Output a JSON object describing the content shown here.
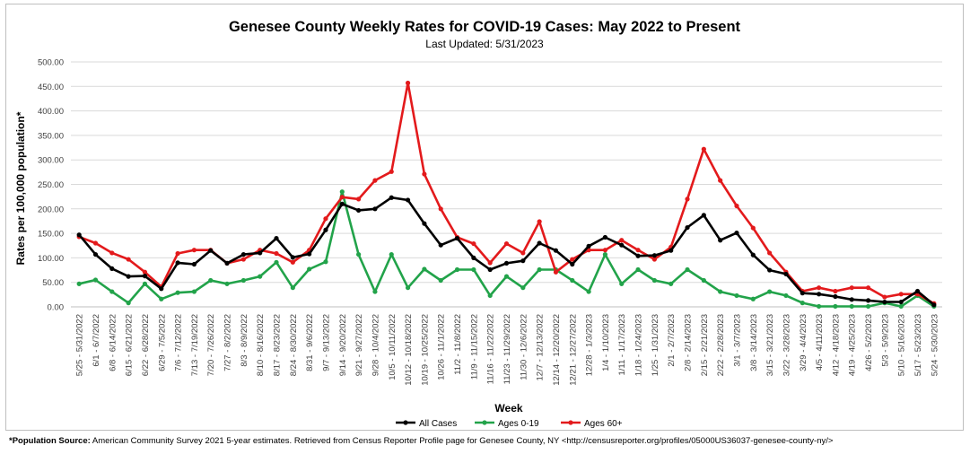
{
  "chart_data": {
    "type": "line",
    "title": "Genesee County Weekly Rates for COVID-19 Cases: May 2022 to Present",
    "subtitle": "Last Updated: 5/31/2023",
    "xlabel": "Week",
    "ylabel": "Rates per 100,000 population*",
    "ylim": [
      0,
      500
    ],
    "yticks": [
      "0.00",
      "50.00",
      "100.00",
      "150.00",
      "200.00",
      "250.00",
      "300.00",
      "350.00",
      "400.00",
      "450.00",
      "500.00"
    ],
    "grid": true,
    "legend_position": "bottom",
    "categories": [
      "5/25 - 5/31/2022",
      "6/1 - 6/7/2022",
      "6/8 - 6/14/2022",
      "6/15 - 6/21/2022",
      "6/22 - 6/28/2022",
      "6/29 - 7/5/2022",
      "7/6 - 7/12/2022",
      "7/13 - 7/19/2022",
      "7/20 - 7/26/2022",
      "7/27 - 8/2/2022",
      "8/3 - 8/9/2022",
      "8/10 - 8/16/2022",
      "8/17 - 8/23/2022",
      "8/24 - 8/30/2022",
      "8/31 - 9/6/2022",
      "9/7 - 9/13/2022",
      "9/14 - 9/20/2022",
      "9/21 - 9/27/2022",
      "9/28 - 10/4/2022",
      "10/5 - 10/11/2022",
      "10/12 - 10/18/2022",
      "10/19 - 10/25/2022",
      "10/26 - 11/1/2022",
      "11/2 - 11/8/2022",
      "11/9 - 11/15/2022",
      "11/16 - 11/22/2022",
      "11/23 - 11/29/2022",
      "11/30 - 12/6/2022",
      "12/7 - 12/13/2022",
      "12/14 - 12/20/2022",
      "12/21 - 12/27/2022",
      "12/28 - 1/3/2023",
      "1/4 - 1/10/2023",
      "1/11 - 1/17/2023",
      "1/18 - 1/24/2023",
      "1/25 - 1/31/2023",
      "2/1 - 2/7/2023",
      "2/8 - 2/14/2023",
      "2/15 - 2/21/2023",
      "2/22 - 2/28/2023",
      "3/1 - 3/7/2023",
      "3/8 - 3/14/2023",
      "3/15 - 3/21/2023",
      "3/22 - 3/28/2023",
      "3/29 - 4/4/2023",
      "4/5 - 4/11/2023",
      "4/12 - 4/18/2023",
      "4/19 - 4/25/2023",
      "4/26 - 5/2/2023",
      "5/3 - 5/9/2023",
      "5/10 - 5/16/2023",
      "5/17 - 5/23/2023",
      "5/24 - 5/30/2023"
    ],
    "series": [
      {
        "name": "All Cases",
        "color": "#000000",
        "values": [
          147,
          107,
          78,
          62,
          63,
          37,
          90,
          87,
          115,
          89,
          107,
          110,
          140,
          101,
          108,
          157,
          210,
          197,
          200,
          223,
          218,
          170,
          126,
          140,
          100,
          76,
          89,
          94,
          130,
          115,
          87,
          124,
          142,
          126,
          104,
          105,
          115,
          162,
          187,
          136,
          151,
          106,
          75,
          67,
          28,
          26,
          21,
          15,
          13,
          10,
          10,
          32,
          4
        ]
      },
      {
        "name": "Ages 0-19",
        "color": "#22a34a",
        "values": [
          47,
          55,
          31,
          8,
          47,
          16,
          29,
          31,
          54,
          47,
          54,
          62,
          91,
          39,
          77,
          92,
          235,
          107,
          31,
          107,
          39,
          77,
          54,
          76,
          76,
          23,
          62,
          39,
          76,
          76,
          54,
          31,
          107,
          47,
          76,
          54,
          47,
          76,
          54,
          31,
          23,
          16,
          31,
          23,
          8,
          1,
          1,
          1,
          1,
          8,
          1,
          23,
          1
        ]
      },
      {
        "name": "Ages 60+",
        "color": "#e31a1c",
        "values": [
          143,
          130,
          110,
          97,
          71,
          41,
          109,
          116,
          116,
          89,
          97,
          116,
          109,
          91,
          116,
          180,
          224,
          220,
          258,
          276,
          457,
          271,
          200,
          142,
          129,
          90,
          129,
          110,
          174,
          71,
          97,
          116,
          116,
          136,
          116,
          97,
          122,
          220,
          322,
          258,
          206,
          161,
          110,
          71,
          32,
          39,
          32,
          39,
          39,
          20,
          26,
          26,
          7
        ]
      }
    ]
  },
  "footnote": {
    "label": "*Population Source:",
    "text": " American Community Survey 2021 5-year estimates. Retrieved from Census Reporter Profile page for Genesee County, NY <http://censusreporter.org/profiles/05000US36037-genesee-county-ny/>"
  }
}
